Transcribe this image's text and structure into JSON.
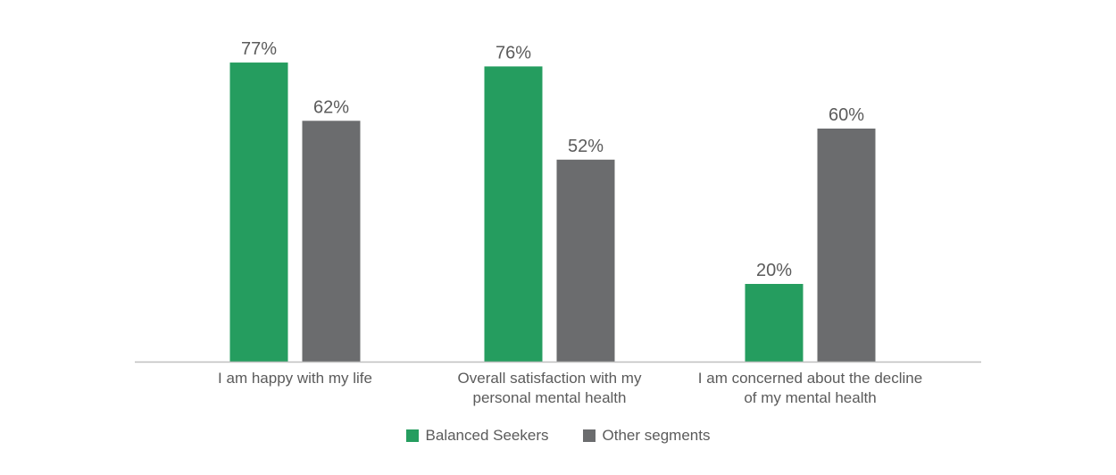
{
  "chart_data": {
    "type": "bar",
    "categories": [
      [
        "I am happy with my life"
      ],
      [
        "Overall satisfaction with my",
        "personal mental health"
      ],
      [
        "I am concerned about the decline",
        "of my mental health"
      ]
    ],
    "series": [
      {
        "name": "Balanced Seekers",
        "color": "#259d5f",
        "values": [
          77,
          76,
          20
        ],
        "labels": [
          "77%",
          "76%",
          "20%"
        ]
      },
      {
        "name": "Other segments",
        "color": "#6b6c6e",
        "values": [
          62,
          52,
          60
        ],
        "labels": [
          "62%",
          "52%",
          "60%"
        ]
      }
    ],
    "ylim": [
      0,
      100
    ],
    "grid": false,
    "legend_position": "bottom-center",
    "axis_color": "#bfbfbf",
    "text_color": "#5b5b5b"
  }
}
